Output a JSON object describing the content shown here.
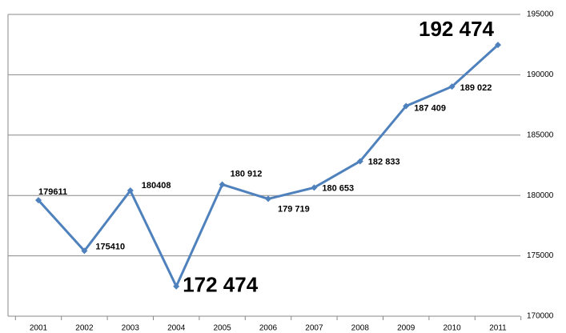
{
  "chart_data": {
    "type": "line",
    "categories": [
      "2001",
      "2002",
      "2003",
      "2004",
      "2005",
      "2006",
      "2007",
      "2008",
      "2009",
      "2010",
      "2011"
    ],
    "series": [
      {
        "color": "#4f81bd",
        "values": [
          179611,
          175410,
          180408,
          172474,
          180912,
          179719,
          180653,
          182833,
          187409,
          189022,
          192474
        ],
        "value_labels": [
          "179611",
          "175410",
          "180408",
          "172 474",
          "180 912",
          "179 719",
          "180 653",
          "182 833",
          "187 409",
          "189 022",
          "192 474"
        ]
      }
    ],
    "ylim": [
      170000,
      195000
    ],
    "yticks": [
      170000,
      175000,
      180000,
      185000,
      190000,
      195000
    ],
    "grid": true,
    "y_axis_side": "right"
  }
}
